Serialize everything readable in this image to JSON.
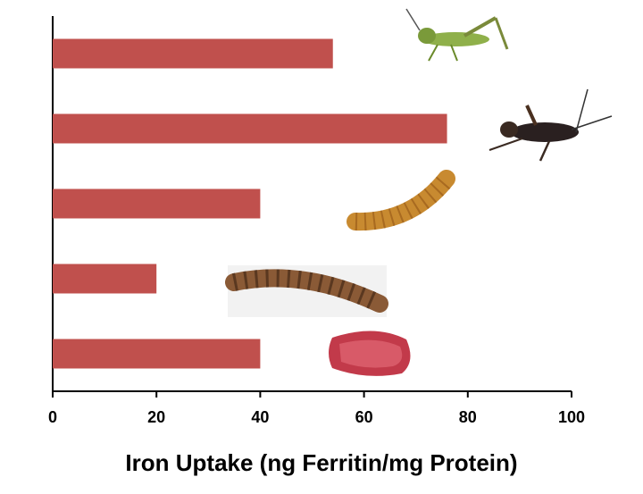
{
  "chart_data": {
    "type": "bar",
    "orientation": "horizontal",
    "x_label": "Iron Uptake (ng Ferritin/mg Protein)",
    "categories": [
      null,
      null,
      null,
      null,
      null
    ],
    "values": [
      54,
      76,
      40,
      20,
      40
    ],
    "color": "#c0504d",
    "xlim": [
      0,
      100
    ],
    "xticks": [
      0,
      20,
      40,
      60,
      80,
      100
    ],
    "grid": false
  }
}
